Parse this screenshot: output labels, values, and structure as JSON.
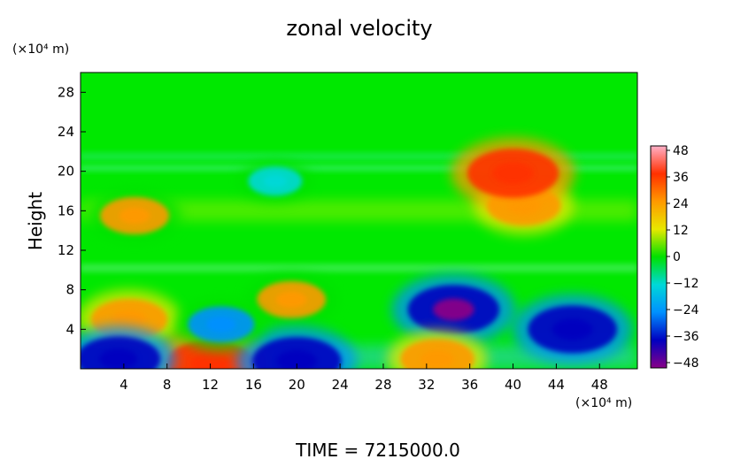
{
  "chart_data": {
    "type": "heatmap",
    "title": "zonal velocity",
    "ylabel": "Height",
    "y_unit": "(×10⁴ m)",
    "x_unit": "(×10⁴ m)",
    "xlim": [
      0,
      51.5
    ],
    "ylim": [
      0,
      30
    ],
    "x_ticks": [
      "4",
      "8",
      "12",
      "16",
      "20",
      "24",
      "28",
      "32",
      "36",
      "40",
      "44",
      "48"
    ],
    "y_ticks": [
      "4",
      "8",
      "12",
      "16",
      "20",
      "24",
      "28"
    ],
    "colorbar": {
      "range": [
        -48,
        48
      ],
      "ticks": [
        "48",
        "36",
        "24",
        "12",
        "0",
        "−12",
        "−24",
        "−36",
        "−48"
      ]
    },
    "colormap": [
      "#ffb0c8",
      "#ff3000",
      "#ff9900",
      "#e8e800",
      "#00e000",
      "#00d8d8",
      "#0090ff",
      "#0000c0",
      "#880088"
    ],
    "features": [
      {
        "x": 4.5,
        "y": 5.0,
        "value": 30
      },
      {
        "x": 19.5,
        "y": 7.0,
        "value": 24
      },
      {
        "x": 34.5,
        "y": 6.0,
        "value": -42
      },
      {
        "x": 45.5,
        "y": 4.0,
        "value": -40
      },
      {
        "x": 12.0,
        "y": 0.5,
        "value": 40
      },
      {
        "x": 20.0,
        "y": 0.8,
        "value": -40
      },
      {
        "x": 3.5,
        "y": 1.0,
        "value": -36
      },
      {
        "x": 33.0,
        "y": 1.0,
        "value": 28
      },
      {
        "x": 13.0,
        "y": 4.5,
        "value": -22
      },
      {
        "x": 41.0,
        "y": 16.5,
        "value": 28
      },
      {
        "x": 5.0,
        "y": 15.5,
        "value": 24
      },
      {
        "x": 40.0,
        "y": 19.8,
        "value": 42
      },
      {
        "x": 18.0,
        "y": 19.0,
        "value": -12
      }
    ],
    "footer": "TIME  =  7215000.0"
  }
}
